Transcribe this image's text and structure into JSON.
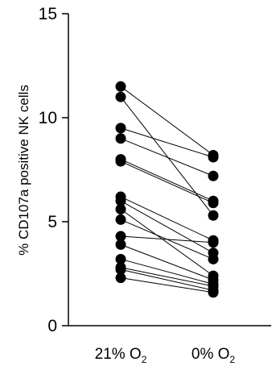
{
  "chart_data": {
    "type": "scatter",
    "ylabel": "% CD107a positive NK cells",
    "ylim": [
      0,
      15
    ],
    "yticks": [
      0,
      5,
      10,
      15
    ],
    "categories": [
      {
        "main": "21% O",
        "sub": "2"
      },
      {
        "main": "0% O",
        "sub": "2"
      }
    ],
    "pairs": [
      [
        11.5,
        8.2
      ],
      [
        11.0,
        5.3
      ],
      [
        9.5,
        8.1
      ],
      [
        9.0,
        7.2
      ],
      [
        8.0,
        6.0
      ],
      [
        7.9,
        5.9
      ],
      [
        6.2,
        4.1
      ],
      [
        6.0,
        3.5
      ],
      [
        5.6,
        2.4
      ],
      [
        5.1,
        3.2
      ],
      [
        4.3,
        4.0
      ],
      [
        3.9,
        2.2
      ],
      [
        3.2,
        2.0
      ],
      [
        2.8,
        1.9
      ],
      [
        2.7,
        1.7
      ],
      [
        2.3,
        1.6
      ]
    ],
    "point_color": "#000000",
    "line_color": "#000000"
  }
}
